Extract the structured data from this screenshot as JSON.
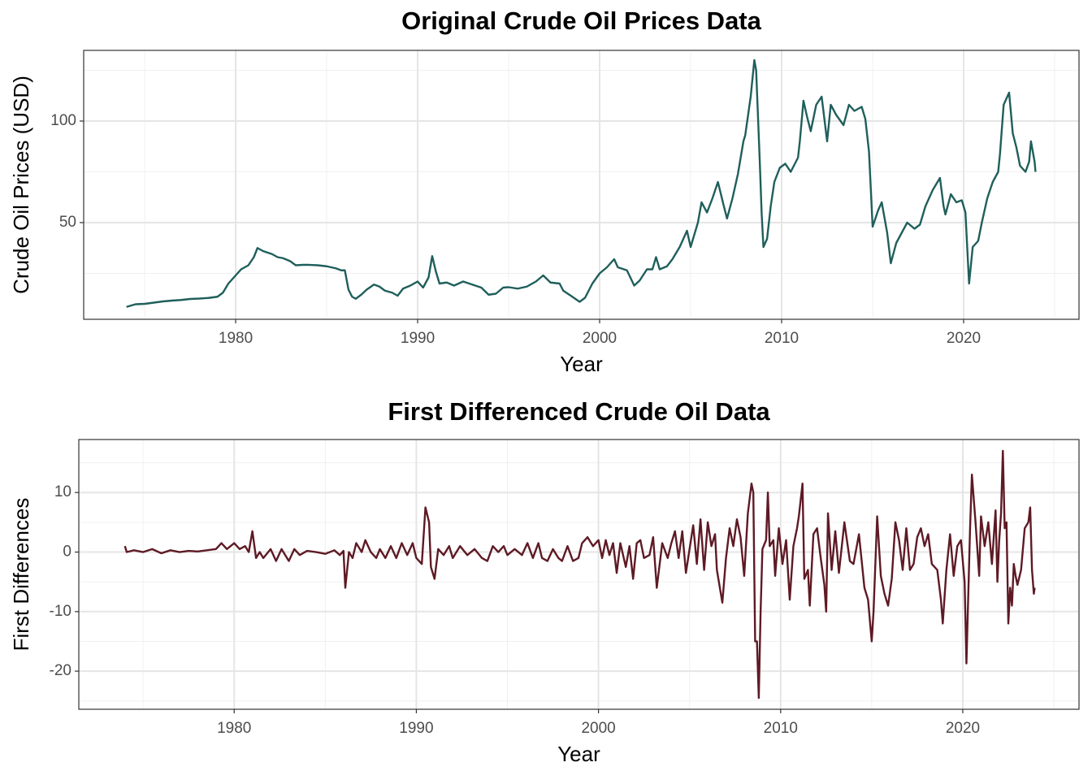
{
  "chart_data": [
    {
      "type": "line",
      "title": "Original Crude Oil Prices Data",
      "x_label": "Year",
      "y_label": "Crude Oil Prices (USD)",
      "color": "#1f5f5b",
      "grid": true,
      "xlim": [
        1971.65,
        2026.34
      ],
      "xticks": [
        1980,
        1990,
        2000,
        2010,
        2020
      ],
      "ylim": [
        2.4,
        134.8
      ],
      "yticks": [
        50,
        100
      ],
      "x": [
        1974.0,
        1974.5,
        1975.0,
        1975.5,
        1976.0,
        1976.5,
        1977.0,
        1977.5,
        1978.0,
        1978.5,
        1979.0,
        1979.3,
        1979.6,
        1980.0,
        1980.3,
        1980.7,
        1981.0,
        1981.2,
        1981.5,
        1982.0,
        1982.3,
        1982.6,
        1983.0,
        1983.3,
        1983.7,
        1984.0,
        1984.5,
        1985.0,
        1985.5,
        1985.8,
        1986.0,
        1986.2,
        1986.4,
        1986.6,
        1986.9,
        1987.2,
        1987.6,
        1987.9,
        1988.2,
        1988.6,
        1988.9,
        1989.2,
        1989.6,
        1990.0,
        1990.3,
        1990.6,
        1990.8,
        1991.0,
        1991.2,
        1991.6,
        1992.0,
        1992.5,
        1993.0,
        1993.5,
        1993.9,
        1994.3,
        1994.7,
        1995.0,
        1995.5,
        1996.0,
        1996.5,
        1996.9,
        1997.3,
        1997.8,
        1998.0,
        1998.5,
        1998.9,
        1999.2,
        1999.6,
        2000.0,
        2000.4,
        2000.8,
        2001.0,
        2001.5,
        2001.9,
        2002.2,
        2002.6,
        2002.9,
        2003.1,
        2003.3,
        2003.7,
        2004.0,
        2004.4,
        2004.8,
        2005.0,
        2005.4,
        2005.6,
        2005.9,
        2006.2,
        2006.5,
        2006.8,
        2007.0,
        2007.3,
        2007.6,
        2007.9,
        2008.0,
        2008.3,
        2008.5,
        2008.6,
        2008.8,
        2008.9,
        2009.0,
        2009.2,
        2009.4,
        2009.6,
        2009.9,
        2010.2,
        2010.5,
        2010.9,
        2011.0,
        2011.2,
        2011.4,
        2011.6,
        2011.9,
        2012.2,
        2012.5,
        2012.7,
        2013.0,
        2013.4,
        2013.7,
        2014.0,
        2014.4,
        2014.6,
        2014.8,
        2015.0,
        2015.3,
        2015.5,
        2015.8,
        2016.0,
        2016.3,
        2016.6,
        2016.9,
        2017.3,
        2017.6,
        2017.9,
        2018.3,
        2018.7,
        2018.9,
        2019.0,
        2019.3,
        2019.6,
        2019.9,
        2020.1,
        2020.3,
        2020.5,
        2020.8,
        2021.0,
        2021.3,
        2021.6,
        2021.9,
        2022.0,
        2022.2,
        2022.4,
        2022.5,
        2022.7,
        2022.9,
        2023.1,
        2023.4,
        2023.6,
        2023.7,
        2023.9,
        2023.95
      ],
      "values": [
        8.5,
        9.8,
        10.0,
        10.6,
        11.2,
        11.6,
        11.9,
        12.4,
        12.6,
        12.9,
        13.5,
        15.5,
        20,
        24,
        27,
        29,
        33,
        37.5,
        36,
        34.5,
        33,
        32.5,
        31,
        29,
        29.2,
        29.2,
        29,
        28.5,
        27.5,
        26.5,
        26.5,
        17,
        13.5,
        12.5,
        14.5,
        17,
        19.5,
        18.5,
        16.5,
        15.5,
        14,
        17.5,
        19,
        21,
        18,
        23,
        33.5,
        26,
        20,
        20.5,
        19,
        21,
        19.5,
        18,
        14.5,
        15,
        18,
        18.2,
        17.5,
        18.5,
        21,
        24,
        20.5,
        20,
        16.5,
        13.5,
        11,
        13,
        20,
        25,
        28,
        32,
        28,
        26.5,
        19,
        21.5,
        27,
        27,
        33,
        27,
        28.5,
        32,
        38,
        46,
        38,
        50,
        60,
        55,
        62,
        70,
        59,
        52,
        62,
        74,
        90,
        93,
        112,
        130,
        125,
        80,
        55,
        38,
        42,
        58,
        70,
        77,
        79,
        75,
        82,
        90,
        110,
        102,
        95,
        108,
        112,
        90,
        108,
        103,
        98,
        108,
        105,
        107,
        101,
        85,
        48,
        56,
        60,
        45,
        30,
        40,
        45,
        50,
        47,
        49,
        58,
        66,
        72,
        58,
        54,
        64,
        60,
        61,
        55,
        20,
        38,
        41,
        50,
        62,
        70,
        75,
        84,
        108,
        112,
        114,
        94,
        87,
        78,
        75,
        80,
        90,
        80,
        75
      ]
    },
    {
      "type": "line",
      "title": "First Differenced Crude Oil Data",
      "x_label": "Year",
      "y_label": "First Differences",
      "color": "#5e1a24",
      "grid": true,
      "xlim": [
        1971.47,
        2026.38
      ],
      "xticks": [
        1980,
        1990,
        2000,
        2010,
        2020
      ],
      "ylim": [
        -26.4,
        18.9
      ],
      "yticks": [
        -20,
        -10,
        0,
        10
      ],
      "x": [
        1974.0,
        1974.1,
        1974.5,
        1975,
        1975.5,
        1976,
        1976.5,
        1977,
        1977.5,
        1978,
        1978.5,
        1979,
        1979.3,
        1979.6,
        1980.0,
        1980.3,
        1980.6,
        1980.8,
        1981.0,
        1981.2,
        1981.4,
        1981.6,
        1982.0,
        1982.3,
        1982.6,
        1983.0,
        1983.3,
        1983.6,
        1984,
        1984.5,
        1985,
        1985.5,
        1985.8,
        1986.0,
        1986.1,
        1986.3,
        1986.5,
        1986.7,
        1987.0,
        1987.2,
        1987.5,
        1987.8,
        1988,
        1988.3,
        1988.6,
        1988.9,
        1989.2,
        1989.5,
        1989.8,
        1990.0,
        1990.3,
        1990.5,
        1990.7,
        1990.8,
        1991.0,
        1991.2,
        1991.5,
        1991.8,
        1992,
        1992.4,
        1992.8,
        1993.2,
        1993.6,
        1993.9,
        1994.2,
        1994.5,
        1994.8,
        1995,
        1995.4,
        1995.8,
        1996.1,
        1996.4,
        1996.7,
        1996.9,
        1997.2,
        1997.5,
        1997.8,
        1998,
        1998.3,
        1998.6,
        1998.9,
        1999.1,
        1999.4,
        1999.7,
        2000.0,
        2000.2,
        2000.4,
        2000.6,
        2000.8,
        2001.0,
        2001.2,
        2001.5,
        2001.7,
        2001.9,
        2002.1,
        2002.3,
        2002.5,
        2002.8,
        2003.0,
        2003.2,
        2003.5,
        2003.8,
        2004.0,
        2004.2,
        2004.4,
        2004.6,
        2004.8,
        2005.0,
        2005.2,
        2005.4,
        2005.6,
        2005.8,
        2006.0,
        2006.2,
        2006.4,
        2006.5,
        2006.8,
        2007.0,
        2007.2,
        2007.4,
        2007.6,
        2007.8,
        2008.0,
        2008.2,
        2008.4,
        2008.5,
        2008.6,
        2008.7,
        2008.8,
        2008.9,
        2009.0,
        2009.2,
        2009.3,
        2009.4,
        2009.6,
        2009.7,
        2009.9,
        2010.1,
        2010.3,
        2010.5,
        2010.7,
        2010.9,
        2011.0,
        2011.2,
        2011.3,
        2011.5,
        2011.6,
        2011.8,
        2012.0,
        2012.2,
        2012.4,
        2012.5,
        2012.6,
        2012.8,
        2013.0,
        2013.2,
        2013.5,
        2013.8,
        2014.0,
        2014.3,
        2014.6,
        2014.8,
        2015.0,
        2015.1,
        2015.3,
        2015.5,
        2015.7,
        2015.9,
        2016.1,
        2016.3,
        2016.5,
        2016.7,
        2016.9,
        2017.1,
        2017.3,
        2017.5,
        2017.7,
        2017.9,
        2018.1,
        2018.3,
        2018.6,
        2018.8,
        2018.9,
        2019.1,
        2019.3,
        2019.5,
        2019.7,
        2019.9,
        2020.1,
        2020.2,
        2020.4,
        2020.5,
        2020.7,
        2020.9,
        2021.0,
        2021.2,
        2021.4,
        2021.6,
        2021.8,
        2021.9,
        2022.0,
        2022.1,
        2022.2,
        2022.3,
        2022.4,
        2022.5,
        2022.6,
        2022.7,
        2022.8,
        2022.9,
        2023.0,
        2023.2,
        2023.4,
        2023.6,
        2023.7,
        2023.8,
        2023.9,
        2023.95
      ],
      "values": [
        1,
        0,
        0.3,
        0,
        0.5,
        -0.2,
        0.3,
        0,
        0.2,
        0.1,
        0.3,
        0.5,
        1.5,
        0.5,
        1.5,
        0.5,
        1,
        0,
        3.5,
        -1,
        0,
        -1,
        0.5,
        -1.5,
        0.5,
        -1.5,
        0.5,
        -0.5,
        0.2,
        0,
        -0.3,
        0.3,
        -0.5,
        0.2,
        -6,
        0,
        -1,
        1.5,
        0,
        2,
        0,
        -1,
        0.5,
        -1,
        1,
        -1,
        1.5,
        -0.5,
        1.5,
        -1,
        -2,
        7.5,
        5,
        -2.5,
        -4.5,
        0.5,
        -0.5,
        1,
        -1,
        1,
        -0.5,
        0.5,
        -1,
        -1.5,
        1,
        0,
        1,
        -0.5,
        0.5,
        -0.5,
        1.5,
        -1,
        1.5,
        -1,
        -1.5,
        0.5,
        -1,
        -1.5,
        1,
        -1.5,
        -1,
        1.5,
        2.5,
        1,
        2,
        -1,
        2,
        -0.5,
        1.5,
        -3.5,
        1.5,
        -2.5,
        1,
        -4.5,
        1.5,
        2,
        -1,
        -0.5,
        2.5,
        -6,
        1.5,
        -1,
        1.5,
        3.5,
        -1,
        3.5,
        -3.5,
        0.5,
        4.5,
        -2,
        5.5,
        -3,
        5,
        1,
        3,
        -3,
        -8.5,
        -1,
        4,
        1,
        5.5,
        2.5,
        -4,
        6.5,
        11.5,
        10,
        -15,
        -15,
        -24.5,
        -10,
        0.5,
        2,
        10,
        1,
        2,
        -4,
        4,
        -2,
        2,
        -8,
        1,
        4,
        6,
        11.5,
        -4.5,
        -3,
        -9,
        3,
        4,
        -1,
        -5.5,
        -10,
        6.5,
        -3,
        3.5,
        -3.5,
        5,
        -1.5,
        -2,
        3,
        -6,
        -8,
        -15,
        -10,
        6,
        -4,
        -7,
        -9,
        -4.5,
        5,
        2,
        -3,
        4,
        -3,
        -2,
        2.5,
        4,
        1,
        3,
        -2,
        -3,
        -8,
        -12,
        -3,
        3,
        -4,
        1,
        2,
        -5,
        -18.7,
        4,
        13,
        5,
        -4,
        6,
        1,
        5,
        -2,
        7,
        -5,
        2,
        6.5,
        17,
        4,
        5,
        -12,
        -6,
        -9,
        -2,
        -4,
        -5.5,
        -3,
        4,
        5,
        7.5,
        -3,
        -7,
        -6
      ]
    }
  ]
}
